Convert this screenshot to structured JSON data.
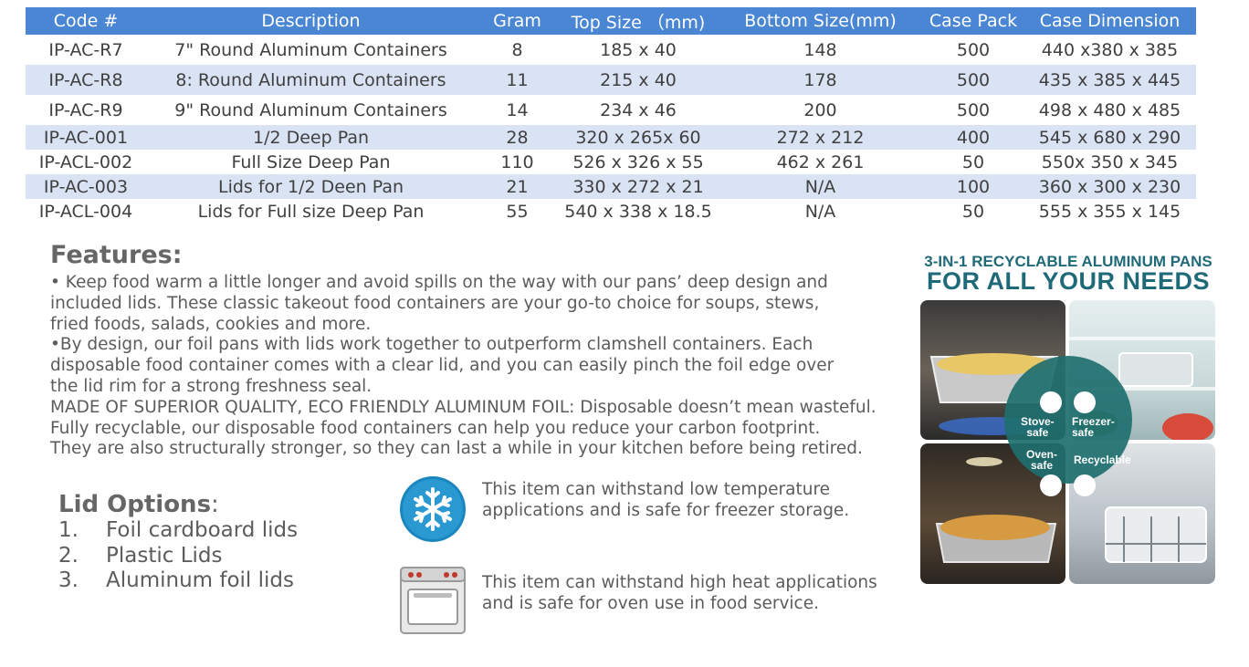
{
  "table": {
    "headers": [
      "Code #",
      "Description",
      "Gram",
      "Top Size （mm)",
      "Bottom Size(mm)",
      "Case Pack",
      "Case Dimension"
    ],
    "rows": [
      [
        "IP-AC-R7",
        "7\" Round Aluminum Containers",
        "8",
        "185 x 40",
        "148",
        "500",
        "440 x380 x 385"
      ],
      [
        "IP-AC-R8",
        "8: Round Aluminum Containers",
        "11",
        "215 x 40",
        "178",
        "500",
        "435 x 385 x 445"
      ],
      [
        "IP-AC-R9",
        "9\" Round Aluminum Containers",
        "14",
        "234 x 46",
        "200",
        "500",
        "498 x 480 x 485"
      ],
      [
        "IP-AC-001",
        "1/2 Deep Pan",
        "28",
        "320 x 265x 60",
        "272 x 212",
        "400",
        "545 x 680 x 290"
      ],
      [
        "IP-ACL-002",
        "Full Size Deep Pan",
        "110",
        "526 x 326 x 55",
        "462 x 261",
        "50",
        "550x 350 x 345"
      ],
      [
        "IP-AC-003",
        "Lids for 1/2 Deen Pan",
        "21",
        "330 x 272 x 21",
        "N/A",
        "100",
        "360 x 300 x 230"
      ],
      [
        "IP-ACL-004",
        "Lids for Full size Deep Pan",
        "55",
        "540 x 338 x 18.5",
        "N/A",
        "50",
        "555 x 355 x 145"
      ]
    ]
  },
  "features": {
    "title": "Features:",
    "lines": [
      "• Keep food warm a little longer and avoid spills on the way with our pans’ deep design and",
      "included lids. These classic takeout food containers are your go-to choice for soups, stews,",
      "fried foods, salads, cookies and more.",
      "•By design, our foil pans with lids work together to outperform clamshell containers. Each",
      "disposable food container comes with a clear lid, and you can easily pinch the foil edge over",
      "the lid rim for a strong freshness seal.",
      "MADE OF SUPERIOR QUALITY, ECO FRIENDLY ALUMINUM FOIL: Disposable doesn’t mean wasteful.",
      "Fully recyclable, our disposable food containers can help you reduce your carbon footprint.",
      "They are also structurally stronger, so they can last a while in your kitchen before being retired."
    ]
  },
  "lid_options": {
    "title": "Lid Options",
    "colon": ":",
    "items": [
      {
        "num": "1.",
        "label": "Foil cardboard lids"
      },
      {
        "num": "2.",
        "label": "Plastic Lids"
      },
      {
        "num": "3.",
        "label": "Aluminum foil lids"
      }
    ]
  },
  "notes": {
    "freezer": {
      "icon": "snowflake-icon",
      "line1": "This item can withstand low temperature",
      "line2": "applications and is safe for freezer storage."
    },
    "oven": {
      "icon": "oven-icon",
      "line1": "This item can withstand high heat applications",
      "line2": "and is safe for oven use in food service."
    }
  },
  "promo": {
    "heading_line1": "3-IN-1 RECYCLABLE ALUMINUM PANS",
    "heading_line2": "FOR ALL YOUR NEEDS",
    "badges": {
      "stove": {
        "l1": "Stove-",
        "l2": "safe"
      },
      "freezer": {
        "l1": "Freezer-",
        "l2": "safe"
      },
      "oven": {
        "l1": "Oven-",
        "l2": "safe"
      },
      "recycle": {
        "l1": "Recyclable"
      }
    }
  },
  "colors": {
    "header_blue": "#4a86d4",
    "row_alt": "#d9e3f4",
    "promo_teal": "#1f6a78",
    "icon_blue": "#1a86c0"
  }
}
